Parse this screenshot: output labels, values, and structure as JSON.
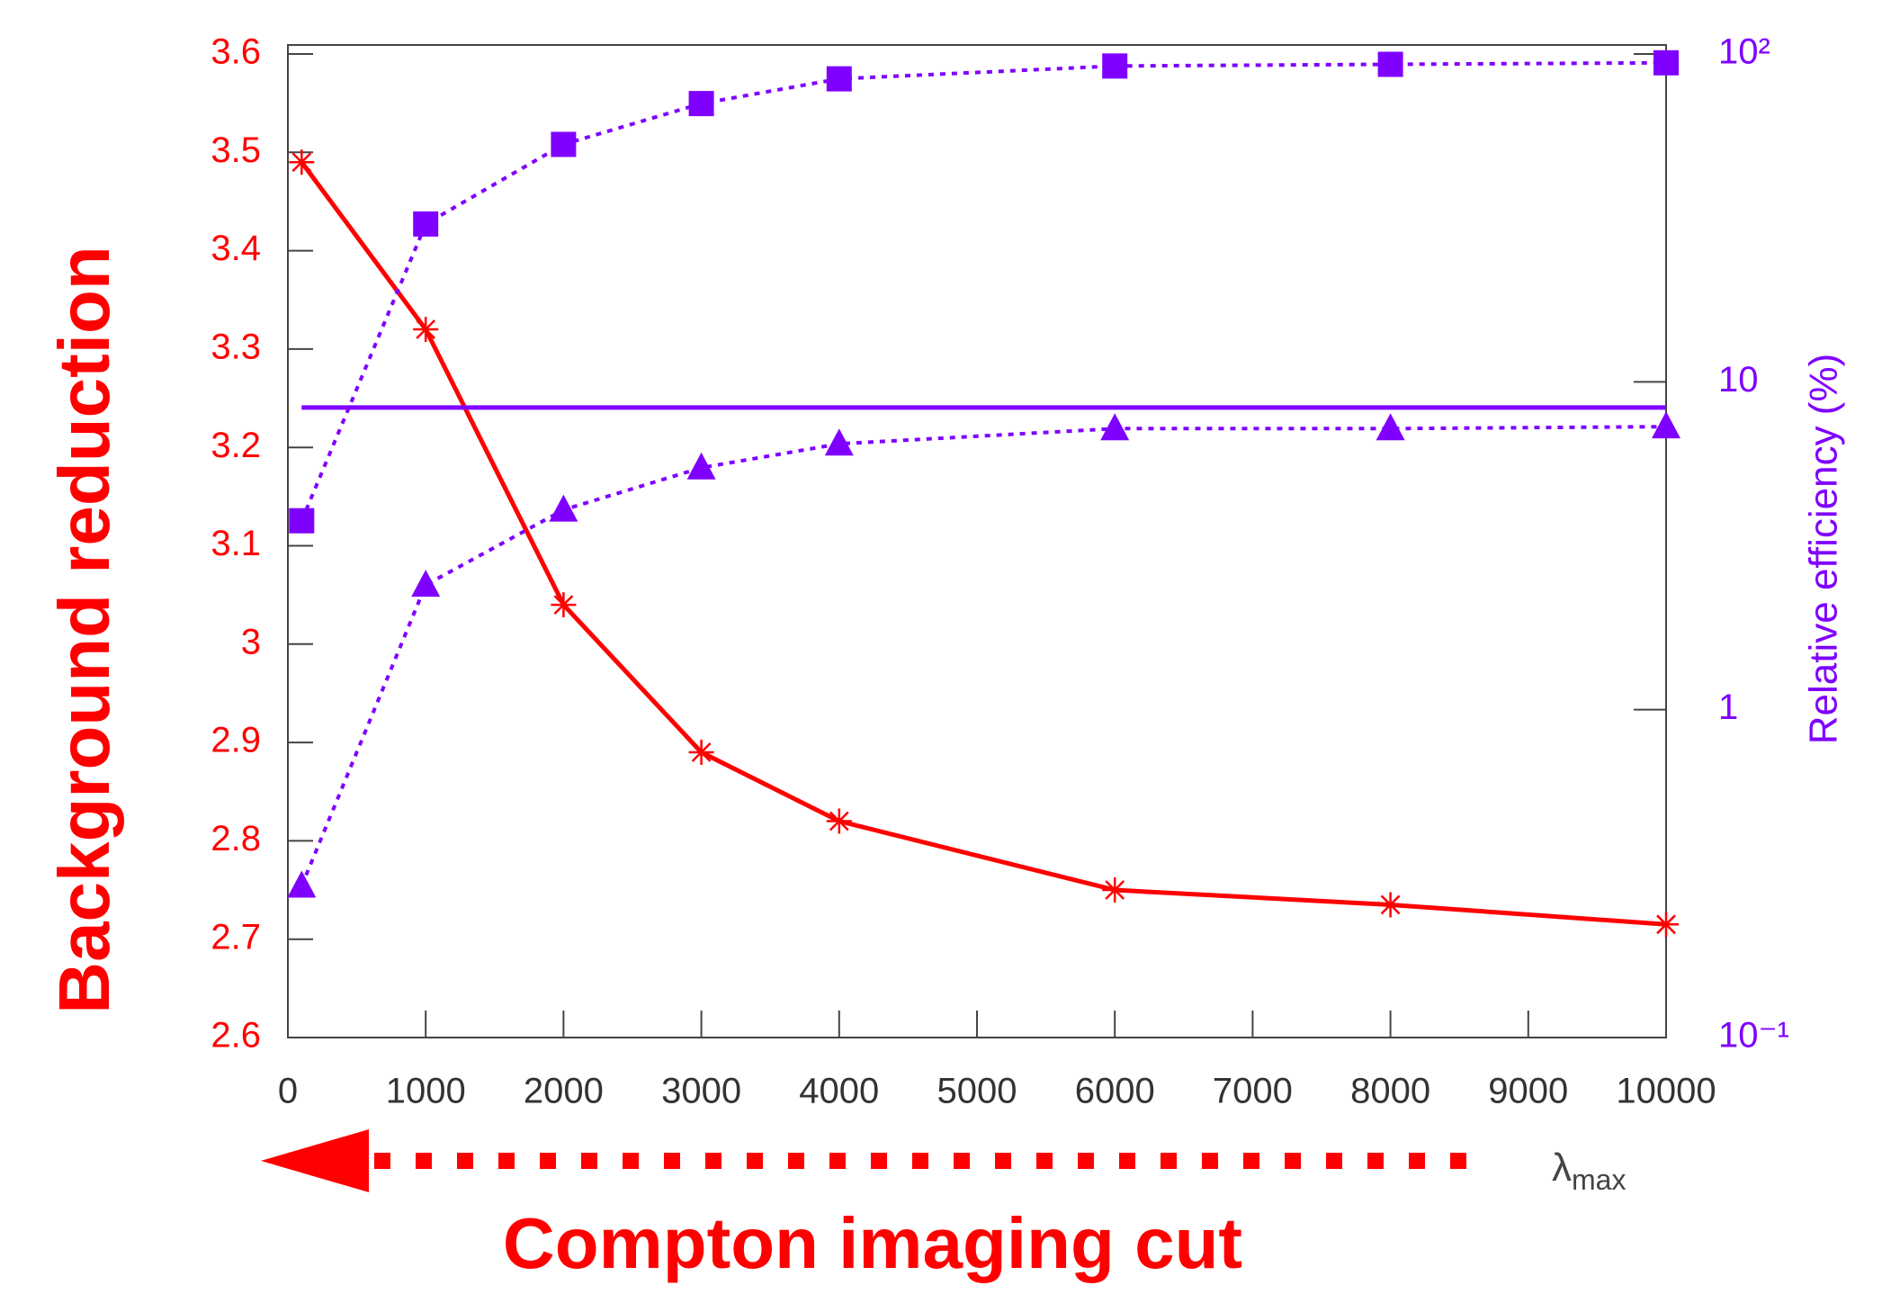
{
  "chart_data": {
    "type": "line",
    "y_label": "Background reduction",
    "y2_label": "Relative efficiency (%)",
    "x_label": {
      "symbol": "λ",
      "subscript": "max"
    },
    "annotation": "Compton imaging cut",
    "x": [
      100,
      1000,
      2000,
      3000,
      4000,
      6000,
      8000,
      10000
    ],
    "xlim": [
      0,
      10000
    ],
    "xticks": [
      0,
      1000,
      2000,
      3000,
      4000,
      5000,
      6000,
      7000,
      8000,
      9000,
      10000
    ],
    "ylim": [
      2.6,
      3.6
    ],
    "yticks": [
      2.6,
      2.7,
      2.8,
      2.9,
      3,
      3.1,
      3.2,
      3.3,
      3.4,
      3.5,
      3.6
    ],
    "y2lim": [
      0.1,
      100
    ],
    "y2scale": "log",
    "y2ticks": [
      {
        "value": 0.1,
        "label": "10⁻¹"
      },
      1,
      10,
      {
        "value": 100,
        "label": "10²"
      }
    ],
    "series": [
      {
        "color": "#ff0000",
        "marker": "star",
        "dash": "solid",
        "values": [
          3.49,
          3.32,
          3.04,
          2.89,
          2.82,
          2.75,
          2.735,
          2.715
        ]
      },
      {
        "color": "#7f00ff",
        "marker": "square",
        "dash": "dotted",
        "axis": "y2",
        "values": [
          3.77,
          30.3,
          53,
          70.6,
          84,
          91.9,
          93,
          94
        ]
      },
      {
        "color": "#7f00ff",
        "marker": "triangle",
        "dash": "dotted",
        "axis": "y2",
        "values": [
          0.29,
          2.4,
          4.07,
          5.47,
          6.47,
          7.2,
          7.2,
          7.3
        ]
      },
      {
        "color": "#7f00ff",
        "marker": "none",
        "dash": "solid",
        "axis": "y2",
        "x": [
          100,
          10000
        ],
        "values": [
          8.35,
          8.35
        ]
      }
    ]
  }
}
